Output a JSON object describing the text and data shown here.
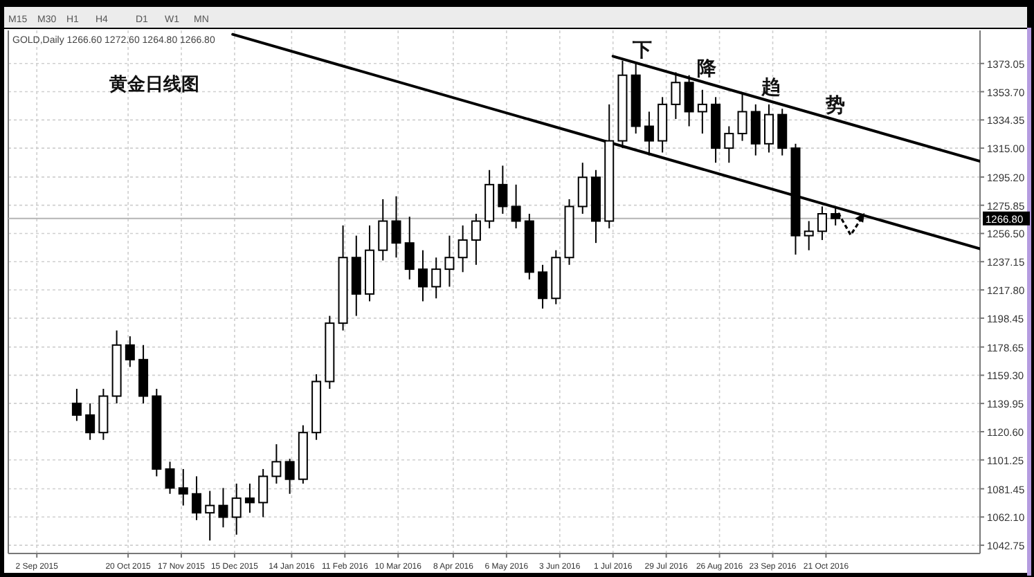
{
  "chart_data": {
    "type": "candlestick",
    "title": "黄金日线图",
    "x": [
      "2015-09-23",
      "2015-09-30",
      "2015-10-07",
      "2015-10-14",
      "2015-10-21",
      "2015-10-28",
      "2015-11-04",
      "2015-11-11",
      "2015-11-18",
      "2015-11-25",
      "2015-12-02",
      "2015-12-09",
      "2015-12-16",
      "2015-12-23",
      "2015-12-30",
      "2016-01-06",
      "2016-01-13",
      "2016-01-20",
      "2016-01-27",
      "2016-02-03",
      "2016-02-10",
      "2016-02-17",
      "2016-02-24",
      "2016-03-02",
      "2016-03-09",
      "2016-03-16",
      "2016-03-23",
      "2016-03-30",
      "2016-04-06",
      "2016-04-13",
      "2016-04-20",
      "2016-04-27",
      "2016-05-04",
      "2016-05-11",
      "2016-05-18",
      "2016-05-25",
      "2016-06-01",
      "2016-06-08",
      "2016-06-15",
      "2016-06-22",
      "2016-06-29",
      "2016-07-06",
      "2016-07-13",
      "2016-07-20",
      "2016-07-27",
      "2016-08-03",
      "2016-08-10",
      "2016-08-17",
      "2016-08-24",
      "2016-08-31",
      "2016-09-07",
      "2016-09-14",
      "2016-09-21",
      "2016-09-28",
      "2016-10-05",
      "2016-10-12",
      "2016-10-19",
      "2016-10-26"
    ],
    "ohlc": [
      [
        1140,
        1150,
        1128,
        1132
      ],
      [
        1132,
        1140,
        1115,
        1120
      ],
      [
        1120,
        1150,
        1115,
        1145
      ],
      [
        1145,
        1190,
        1140,
        1180
      ],
      [
        1180,
        1186,
        1165,
        1170
      ],
      [
        1170,
        1180,
        1140,
        1145
      ],
      [
        1145,
        1150,
        1090,
        1095
      ],
      [
        1095,
        1100,
        1078,
        1082
      ],
      [
        1082,
        1095,
        1070,
        1078
      ],
      [
        1078,
        1090,
        1060,
        1065
      ],
      [
        1065,
        1080,
        1046,
        1070
      ],
      [
        1070,
        1082,
        1055,
        1062
      ],
      [
        1062,
        1085,
        1050,
        1075
      ],
      [
        1075,
        1085,
        1065,
        1072
      ],
      [
        1072,
        1095,
        1062,
        1090
      ],
      [
        1090,
        1112,
        1085,
        1100
      ],
      [
        1100,
        1102,
        1078,
        1088
      ],
      [
        1088,
        1125,
        1085,
        1120
      ],
      [
        1120,
        1160,
        1115,
        1155
      ],
      [
        1155,
        1200,
        1150,
        1195
      ],
      [
        1195,
        1262,
        1190,
        1240
      ],
      [
        1240,
        1255,
        1200,
        1215
      ],
      [
        1215,
        1262,
        1210,
        1245
      ],
      [
        1245,
        1280,
        1238,
        1265
      ],
      [
        1265,
        1282,
        1240,
        1250
      ],
      [
        1250,
        1268,
        1225,
        1232
      ],
      [
        1232,
        1245,
        1210,
        1220
      ],
      [
        1220,
        1240,
        1212,
        1232
      ],
      [
        1232,
        1255,
        1220,
        1240
      ],
      [
        1240,
        1262,
        1230,
        1252
      ],
      [
        1252,
        1270,
        1235,
        1265
      ],
      [
        1265,
        1300,
        1260,
        1290
      ],
      [
        1290,
        1303,
        1270,
        1275
      ],
      [
        1275,
        1290,
        1260,
        1265
      ],
      [
        1265,
        1270,
        1225,
        1230
      ],
      [
        1230,
        1235,
        1205,
        1212
      ],
      [
        1212,
        1245,
        1208,
        1240
      ],
      [
        1240,
        1280,
        1235,
        1275
      ],
      [
        1275,
        1305,
        1270,
        1295
      ],
      [
        1295,
        1300,
        1250,
        1265
      ],
      [
        1265,
        1345,
        1260,
        1320
      ],
      [
        1320,
        1375,
        1315,
        1365
      ],
      [
        1365,
        1373,
        1325,
        1330
      ],
      [
        1330,
        1340,
        1310,
        1320
      ],
      [
        1320,
        1350,
        1312,
        1345
      ],
      [
        1345,
        1367,
        1335,
        1360
      ],
      [
        1360,
        1365,
        1330,
        1340
      ],
      [
        1340,
        1355,
        1325,
        1345
      ],
      [
        1345,
        1350,
        1305,
        1315
      ],
      [
        1315,
        1330,
        1305,
        1325
      ],
      [
        1325,
        1352,
        1320,
        1340
      ],
      [
        1340,
        1345,
        1310,
        1318
      ],
      [
        1318,
        1345,
        1312,
        1338
      ],
      [
        1338,
        1342,
        1310,
        1315
      ],
      [
        1315,
        1318,
        1242,
        1255
      ],
      [
        1255,
        1265,
        1245,
        1258
      ],
      [
        1258,
        1275,
        1252,
        1270
      ],
      [
        1270,
        1274,
        1262,
        1266.8
      ]
    ],
    "series": [
      {
        "type": "line",
        "color": "#000000",
        "x": [
          "2015-12-14",
          "2017-01-10"
        ],
        "values": [
          1393,
          1246
        ]
      },
      {
        "type": "line",
        "color": "#000000",
        "x": [
          "2016-07-01",
          "2017-01-10"
        ],
        "values": [
          1378,
          1306
        ]
      }
    ],
    "xlim": [
      "2015-08-18",
      "2017-01-10"
    ],
    "ylim": [
      1037.1,
      1393.8
    ],
    "xticks": [
      {
        "value": "2015-09-02",
        "label": "2 Sep 2015"
      },
      {
        "value": "2015-10-20",
        "label": "20 Oct 2015"
      },
      {
        "value": "2015-11-17",
        "label": "17 Nov 2015"
      },
      {
        "value": "2015-12-15",
        "label": "15 Dec 2015"
      },
      {
        "value": "2016-01-14",
        "label": "14 Jan 2016"
      },
      {
        "value": "2016-02-11",
        "label": "11 Feb 2016"
      },
      {
        "value": "2016-03-10",
        "label": "10 Mar 2016"
      },
      {
        "value": "2016-04-08",
        "label": "8 Apr 2016"
      },
      {
        "value": "2016-05-06",
        "label": "6 May 2016"
      },
      {
        "value": "2016-06-03",
        "label": "3 Jun 2016"
      },
      {
        "value": "2016-07-01",
        "label": "1 Jul 2016"
      },
      {
        "value": "2016-07-29",
        "label": "29 Jul 2016"
      },
      {
        "value": "2016-08-26",
        "label": "26 Aug 2016"
      },
      {
        "value": "2016-09-23",
        "label": "23 Sep 2016"
      },
      {
        "value": "2016-10-21",
        "label": "21 Oct 2016"
      }
    ],
    "yticks": [
      1373.05,
      {
        "value": 1353.7,
        "label": "1353.70"
      },
      1334.35,
      {
        "value": 1315,
        "label": "1315.00"
      },
      {
        "value": 1295.2,
        "label": "1295.20"
      },
      1275.85,
      {
        "value": 1256.5,
        "label": "1256.50"
      },
      1237.15,
      {
        "value": 1217.8,
        "label": "1217.80"
      },
      1198.45,
      1178.65,
      {
        "value": 1159.3,
        "label": "1159.30"
      },
      1139.95,
      {
        "value": 1120.6,
        "label": "1120.60"
      },
      1101.25,
      1081.45,
      {
        "value": 1062.1,
        "label": "1062.10"
      },
      1042.75
    ],
    "ref_lines": [
      {
        "axis": "y",
        "value": 1266.8,
        "label": "1266.80",
        "color": "#b4b4b4"
      }
    ],
    "grid": true,
    "annotations": [
      "GOLD,Daily 1266.60 1272.60 1264.80 1266.80",
      "M15",
      "M30",
      "H1",
      "H4",
      "D1",
      "W1",
      "MN",
      "下",
      "降",
      "趋",
      "势"
    ]
  }
}
